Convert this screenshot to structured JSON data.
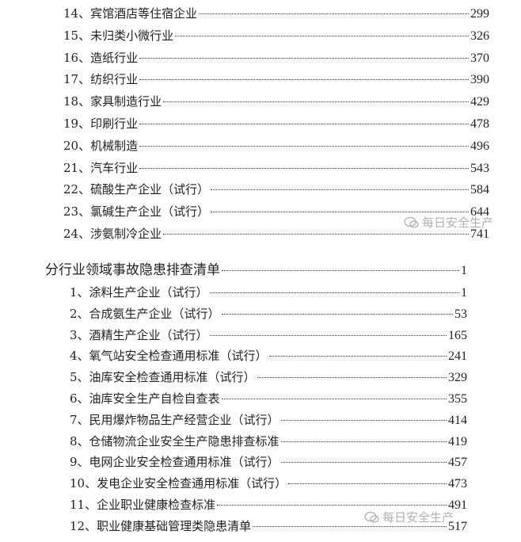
{
  "block1": [
    {
      "label": "14、宾馆酒店等住宿企业",
      "page": "299"
    },
    {
      "label": "15、未归类小微行业",
      "page": "326"
    },
    {
      "label": "16、造纸行业",
      "page": "370"
    },
    {
      "label": "17、纺织行业",
      "page": "390"
    },
    {
      "label": "18、家具制造行业",
      "page": "429"
    },
    {
      "label": "19、印刷行业",
      "page": "478"
    },
    {
      "label": "20、机械制造",
      "page": "496"
    },
    {
      "label": "21、汽车行业",
      "page": "543"
    },
    {
      "label": "22、硫酸生产企业（试行）",
      "page": "584"
    },
    {
      "label": "23、氯碱生产企业（试行）",
      "page": "644"
    },
    {
      "label": "24、涉氨制冷企业",
      "page": "741"
    }
  ],
  "section": {
    "label": "分行业领域事故隐患排查清单",
    "page": "1"
  },
  "block2": [
    {
      "label": "1、涂料生产企业（试行）",
      "page": "1"
    },
    {
      "label": "2、合成氨生产企业（试行）",
      "page": "53"
    },
    {
      "label": "3、酒精生产企业（试行）",
      "page": "165"
    },
    {
      "label": "4、氧气站安全检查通用标准（试行）",
      "page": "241"
    },
    {
      "label": "5、油库安全检查通用标准（试行）",
      "page": "329"
    },
    {
      "label": "6、油库安全生产自检自查表",
      "page": "355"
    },
    {
      "label": "7、民用爆炸物品生产经营企业（试行）",
      "page": "414"
    },
    {
      "label": "8、仓储物流企业安全生产隐患排查标准",
      "page": "419"
    },
    {
      "label": "9、电网企业安全检查通用标准（试行）",
      "page": "457"
    },
    {
      "label": "10、发电企业安全检查通用标准（试行）",
      "page": "473"
    },
    {
      "label": "11、企业职业健康检查标准",
      "page": "491"
    },
    {
      "label": "12、职业健康基础管理类隐患清单",
      "page": "517"
    }
  ],
  "watermark": {
    "text": "每日安全生产",
    "icon": "wechat-icon"
  }
}
